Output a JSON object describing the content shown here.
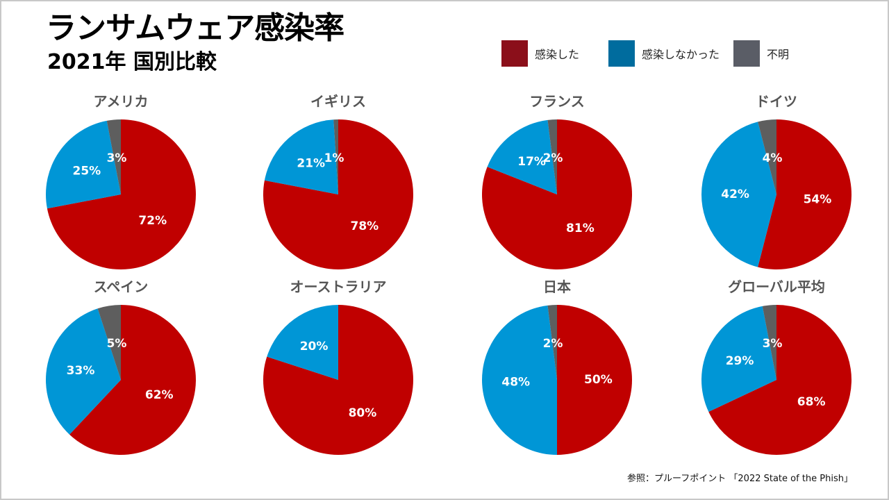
{
  "header": {
    "title": "ランサムウェア感染率",
    "subtitle": "2021年 国別比較"
  },
  "legend": [
    {
      "label": "感染した",
      "color": "#8B0F1A"
    },
    {
      "label": "感染しなかった",
      "color": "#006C9E"
    },
    {
      "label": "不明",
      "color": "#5A5D66"
    }
  ],
  "colors": {
    "infected": "#C00000",
    "not_infected": "#0096D6",
    "unknown": "#5E5E5E"
  },
  "chart_data": [
    {
      "type": "pie",
      "title": "アメリカ",
      "categories": [
        "感染した",
        "感染しなかった",
        "不明"
      ],
      "values": [
        72,
        25,
        3
      ],
      "labels": [
        "72%",
        "25%",
        "3%"
      ]
    },
    {
      "type": "pie",
      "title": "イギリス",
      "categories": [
        "感染した",
        "感染しなかった",
        "不明"
      ],
      "values": [
        78,
        21,
        1
      ],
      "labels": [
        "78%",
        "21%",
        "1%"
      ]
    },
    {
      "type": "pie",
      "title": "フランス",
      "categories": [
        "感染した",
        "感染しなかった",
        "不明"
      ],
      "values": [
        81,
        17,
        2
      ],
      "labels": [
        "81%",
        "17%",
        "2%"
      ]
    },
    {
      "type": "pie",
      "title": "ドイツ",
      "categories": [
        "感染した",
        "感染しなかった",
        "不明"
      ],
      "values": [
        54,
        42,
        4
      ],
      "labels": [
        "54%",
        "42%",
        "4%"
      ]
    },
    {
      "type": "pie",
      "title": "スペイン",
      "categories": [
        "感染した",
        "感染しなかった",
        "不明"
      ],
      "values": [
        62,
        33,
        5
      ],
      "labels": [
        "62%",
        "33%",
        "5%"
      ]
    },
    {
      "type": "pie",
      "title": "オーストラリア",
      "categories": [
        "感染した",
        "感染しなかった",
        "不明"
      ],
      "values": [
        80,
        20,
        0
      ],
      "labels": [
        "80%",
        "20%",
        ""
      ]
    },
    {
      "type": "pie",
      "title": "日本",
      "categories": [
        "感染した",
        "感染しなかった",
        "不明"
      ],
      "values": [
        50,
        48,
        2
      ],
      "labels": [
        "50%",
        "48%",
        "2%"
      ]
    },
    {
      "type": "pie",
      "title": "グローバル平均",
      "categories": [
        "感染した",
        "感染しなかった",
        "不明"
      ],
      "values": [
        68,
        29,
        3
      ],
      "labels": [
        "68%",
        "29%",
        "3%"
      ]
    }
  ],
  "source": "参照：プルーフポイント 「2022 State of the Phish」"
}
